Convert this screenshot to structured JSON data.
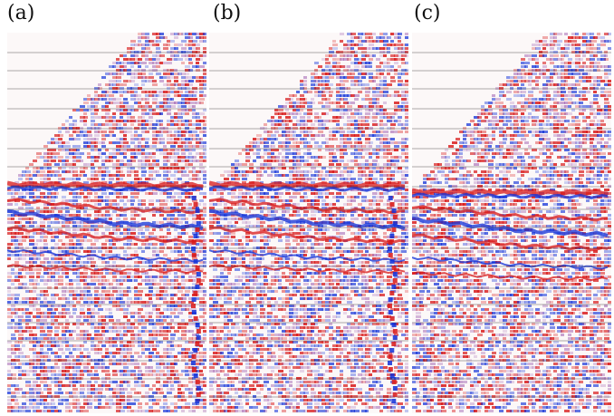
{
  "figure": {
    "panels": [
      {
        "label": "(a)",
        "id": "a"
      },
      {
        "label": "(b)",
        "id": "b"
      },
      {
        "label": "(c)",
        "id": "c"
      }
    ],
    "colors": {
      "positive": "#d81818",
      "negative": "#1030d8",
      "midtone": "#a060b0",
      "background": "#fcf8f8",
      "trace_line": "#3a3a3a"
    }
  }
}
